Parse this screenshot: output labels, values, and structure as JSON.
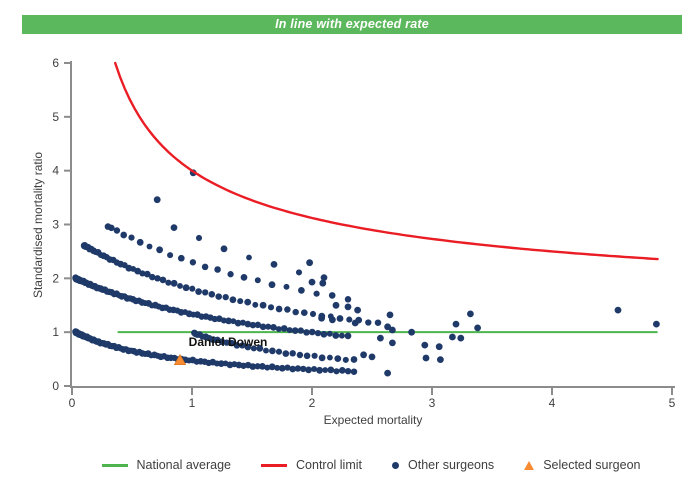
{
  "banner": {
    "text": "In line with expected rate",
    "bg": "#5cb85c"
  },
  "colors": {
    "banner_green": "#5cb85c",
    "line_green": "#4eb44e",
    "control_red": "#ea1d25",
    "point_navy": "#1f3a69",
    "selected_orange": "#f68b33",
    "selected_orange_edge": "#e0791f",
    "axis_gray": "#8c8c8c",
    "text_dark": "#3f3f3f"
  },
  "legend": [
    {
      "id": "national-average",
      "label": "National average",
      "marker": "line",
      "color": "#4eb44e"
    },
    {
      "id": "control-limit",
      "label": "Control limit",
      "marker": "line",
      "color": "#ea1d25"
    },
    {
      "id": "other-surgeons",
      "label": "Other surgeons",
      "marker": "dot",
      "color": "#1f3a69"
    },
    {
      "id": "selected-surgeon",
      "label": "Selected surgeon",
      "marker": "triangle",
      "color": "#f68b33"
    }
  ],
  "chart_data": {
    "type": "scatter",
    "title": "In line with expected rate",
    "xlabel": "Expected mortality",
    "ylabel": "Standardised mortality ratio",
    "xlim": [
      0,
      5
    ],
    "ylim": [
      0,
      6
    ],
    "xticks": [
      0,
      1,
      2,
      3,
      4,
      5
    ],
    "yticks": [
      0,
      1,
      2,
      3,
      4,
      5,
      6
    ],
    "grid": false,
    "legend_position": "bottom",
    "national_average": {
      "y": 1.0,
      "x_start": 0.38,
      "x_end": 4.88
    },
    "control_limit": {
      "formula": "y = offset + coef / sqrt(x)",
      "params": {
        "offset": 1,
        "coef": 3
      },
      "x_start": 0.36,
      "x_end": 4.88,
      "anchor_points": [
        [
          0.36,
          6.0
        ],
        [
          1.0,
          4.0
        ],
        [
          2.0,
          3.12
        ],
        [
          3.0,
          2.73
        ],
        [
          4.0,
          2.5
        ],
        [
          4.88,
          2.36
        ]
      ]
    },
    "other_surgeons": {
      "band_formula": "y = a / (x + b)  (dense funnel bands of overlapping points)",
      "bands": [
        {
          "a": 0.87,
          "b": 0.84,
          "x_start": 0.03,
          "x_end": 2.35,
          "n": 95,
          "gamma": 2.0,
          "note": "lowest dense band, starts (0,1.0), Daniel Dowen lies on it"
        },
        {
          "a": 1.26,
          "b": 0.27,
          "x_start": 1.02,
          "x_end": 2.35,
          "n": 30,
          "gamma": 1.5,
          "note": "band just below national average, (1.5,0.71)-(2.1,0.54)"
        },
        {
          "a": 3.9,
          "b": 1.92,
          "x_start": 0.03,
          "x_end": 2.3,
          "n": 85,
          "gamma": 1.9,
          "note": "dense band, starts (0,2.0)"
        },
        {
          "a": 5.18,
          "b": 1.88,
          "x_start": 0.1,
          "x_end": 2.55,
          "n": 55,
          "gamma": 1.8,
          "note": "medium band, starts (0.1,2.6)"
        },
        {
          "a": 7.13,
          "b": 2.1,
          "x_start": 0.3,
          "x_end": 2.3,
          "n": 22,
          "gamma": 1.4,
          "note": "sparse band, starts (0.3,3.0)"
        },
        {
          "a": 7.83,
          "b": 1.8,
          "x_start": 0.85,
          "x_end": 2.1,
          "n": 7,
          "gamma": 1.0,
          "note": "very sparse top band"
        }
      ],
      "isolated_points": [
        [
          0.71,
          3.46
        ],
        [
          1.01,
          3.96
        ],
        [
          1.98,
          2.29
        ],
        [
          2.0,
          1.93
        ],
        [
          2.09,
          1.91
        ],
        [
          2.2,
          1.5
        ],
        [
          2.3,
          1.47
        ],
        [
          2.38,
          1.41
        ],
        [
          2.08,
          1.26
        ],
        [
          2.17,
          1.23
        ],
        [
          2.36,
          1.17
        ],
        [
          2.65,
          1.32
        ],
        [
          2.63,
          1.1
        ],
        [
          2.67,
          1.04
        ],
        [
          2.83,
          1.0
        ],
        [
          2.57,
          0.89
        ],
        [
          2.67,
          0.8
        ],
        [
          2.43,
          0.58
        ],
        [
          2.5,
          0.54
        ],
        [
          2.63,
          0.24
        ],
        [
          2.94,
          0.76
        ],
        [
          3.06,
          0.73
        ],
        [
          2.95,
          0.52
        ],
        [
          3.07,
          0.49
        ],
        [
          3.32,
          1.34
        ],
        [
          3.2,
          1.15
        ],
        [
          3.38,
          1.08
        ],
        [
          3.17,
          0.91
        ],
        [
          3.24,
          0.89
        ],
        [
          4.55,
          1.41
        ],
        [
          4.87,
          1.15
        ]
      ]
    },
    "selected_surgeon": {
      "label": "Daniel Dowen",
      "x": 0.9,
      "y": 0.48,
      "label_anchor": {
        "x": 1.3,
        "y": 0.82
      }
    }
  }
}
